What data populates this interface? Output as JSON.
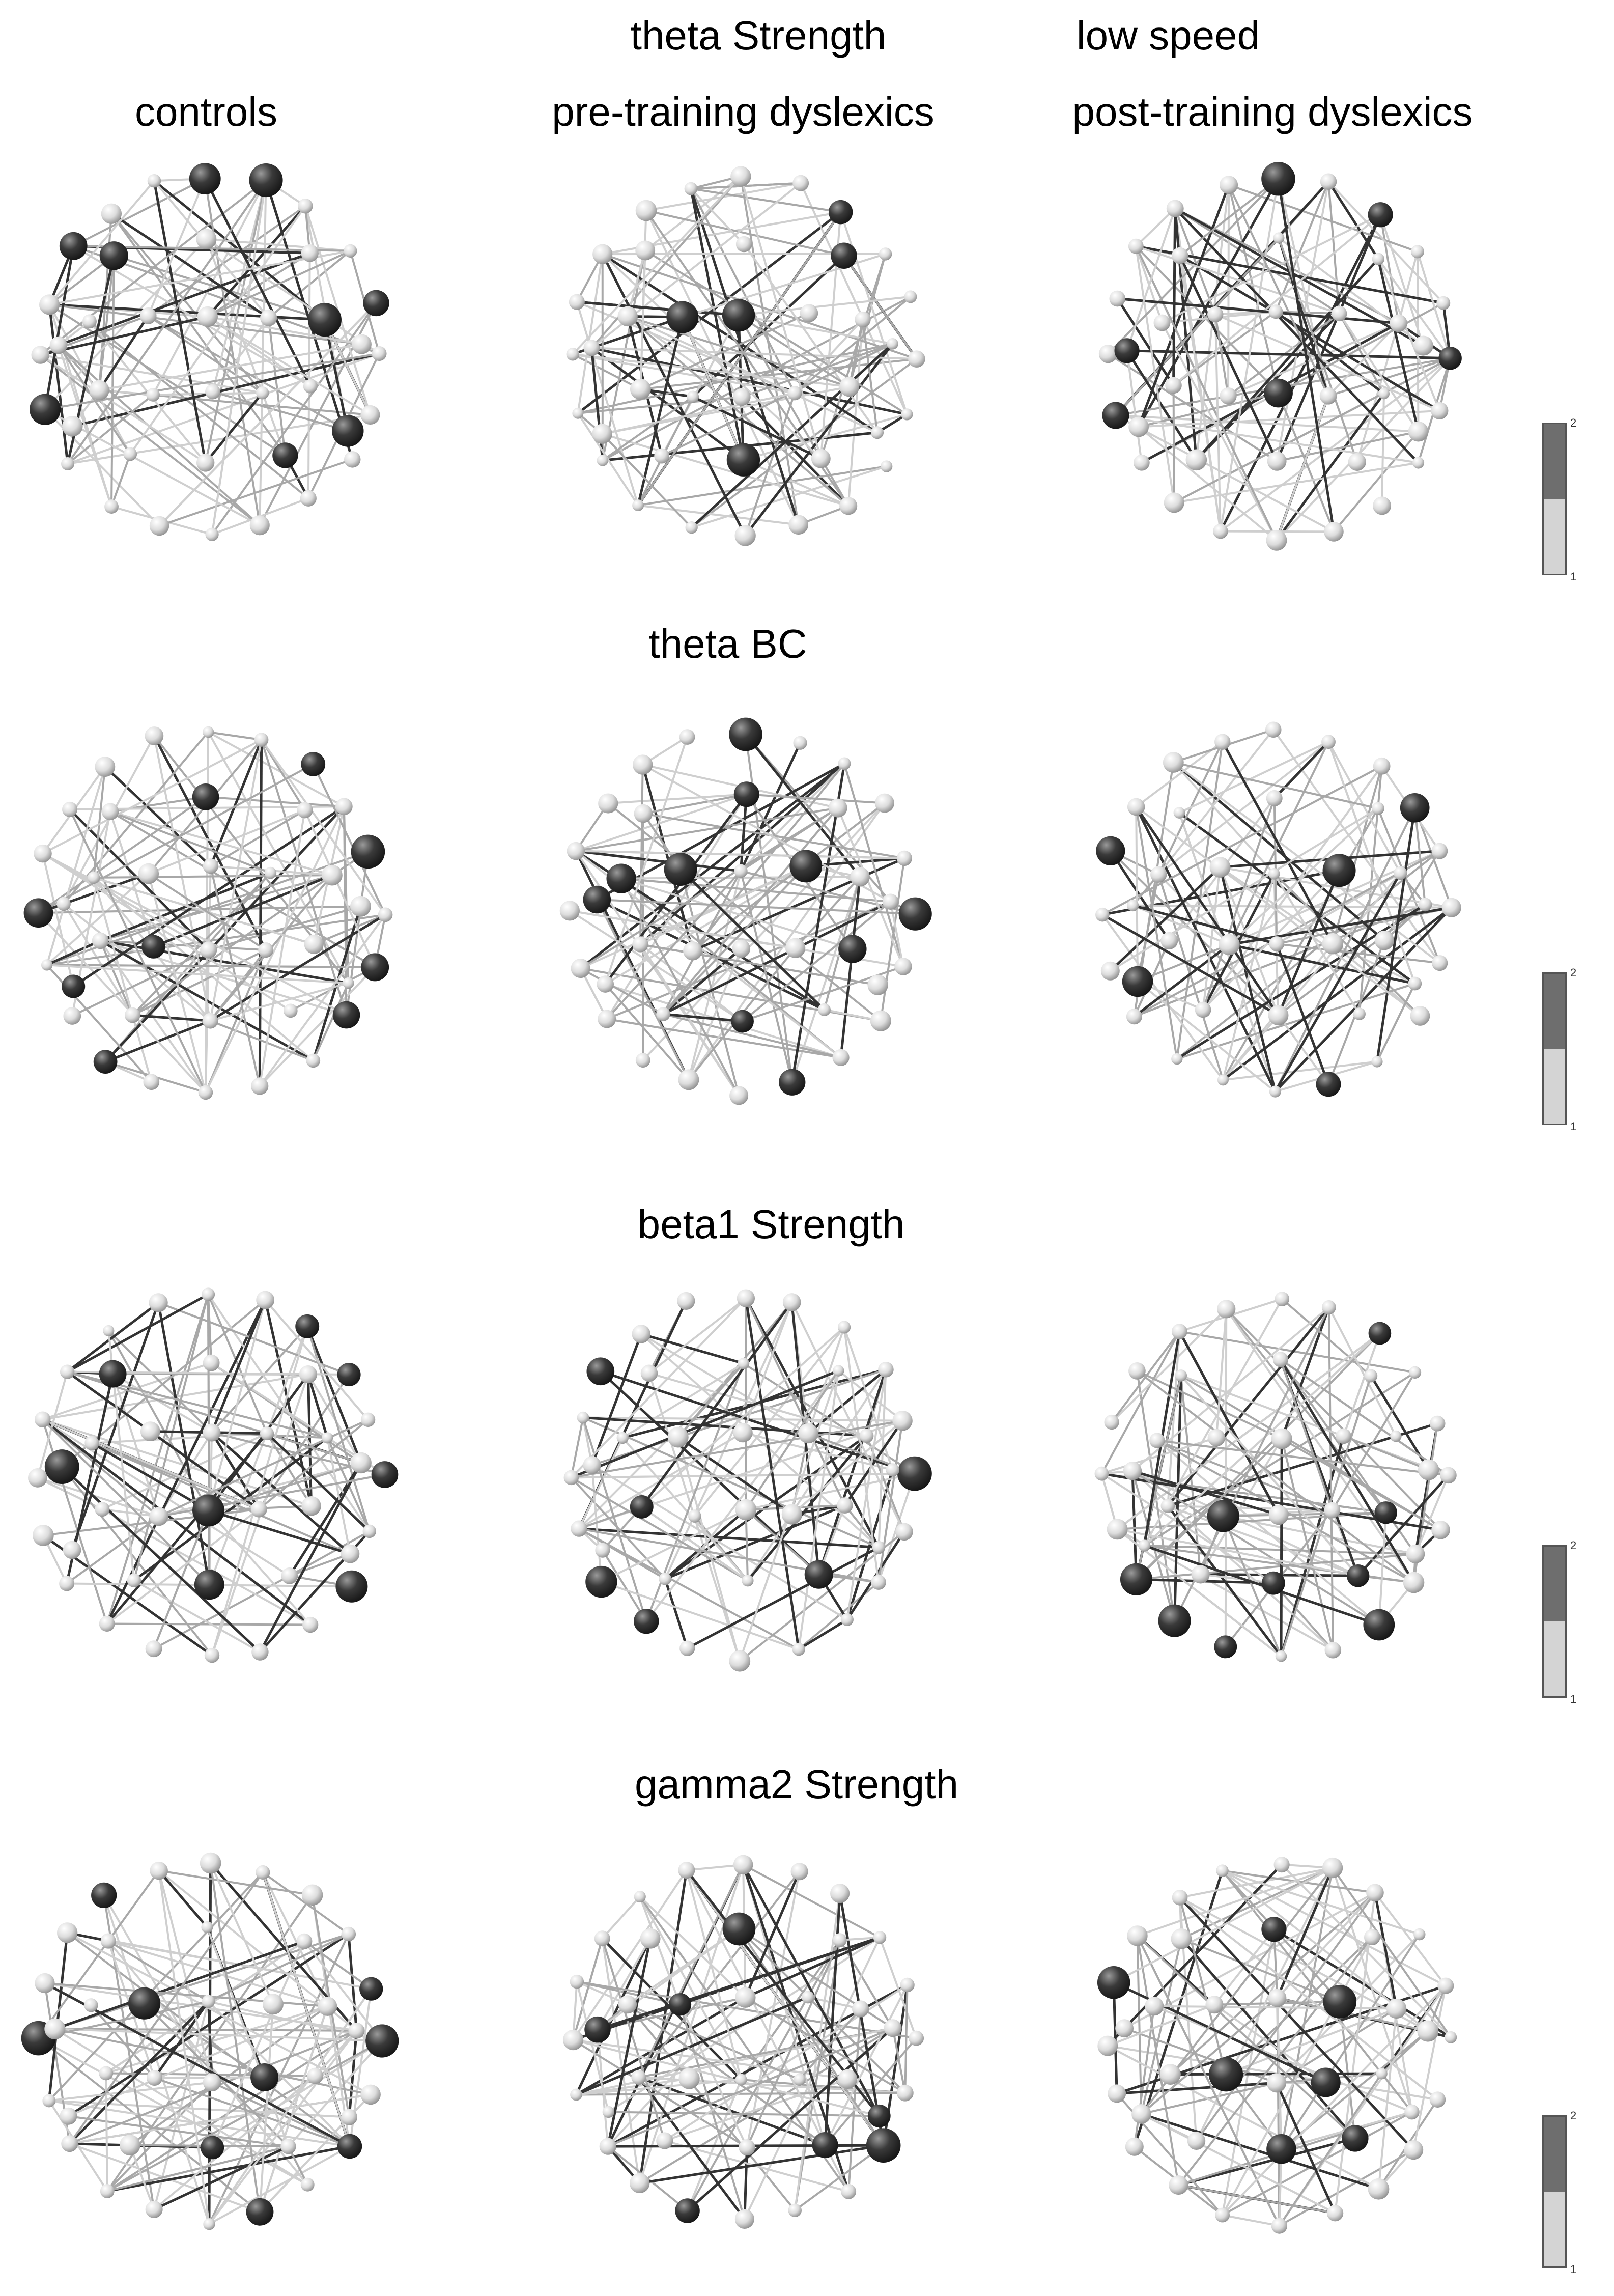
{
  "header": {
    "title_left": "theta Strength",
    "title_right": "low speed"
  },
  "columns": [
    "controls",
    "pre-training dyslexics",
    "post-training dyslexics"
  ],
  "rows": [
    {
      "title": ""
    },
    {
      "title": "theta BC"
    },
    {
      "title": "beta1 Strength"
    },
    {
      "title": "gamma2 Strength"
    }
  ],
  "colorbar": {
    "min_label": "1",
    "max_label": "2",
    "dark": "#6e6e6e",
    "light": "#d4d4d4"
  },
  "colors": {
    "node_dark": "#2b2b2b",
    "node_light": "#e6e6e6",
    "edge_dark": "#333333",
    "edge_light": "#cfcfcf"
  }
}
